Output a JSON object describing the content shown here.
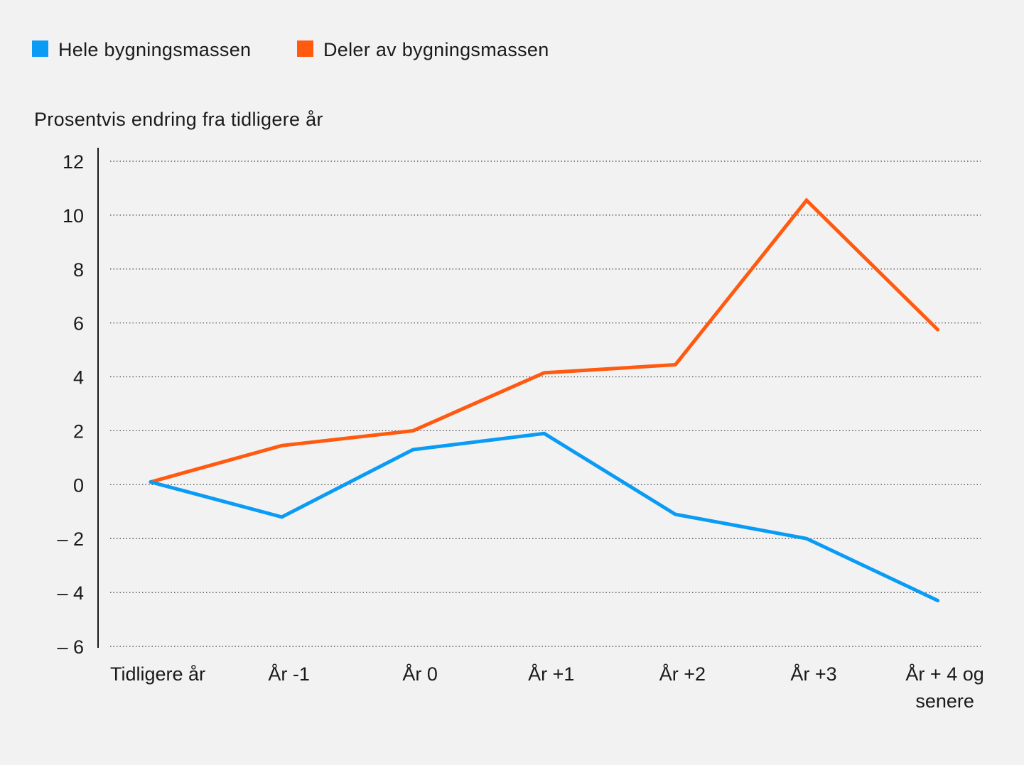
{
  "chart_data": {
    "type": "line",
    "title": "",
    "ylabel": "Prosentvis endring fra tidligere år",
    "xlabel": "",
    "categories": [
      "Tidligere år",
      "År -1",
      "År 0",
      "År +1",
      "År +2",
      "År +3",
      "År + 4 og senere"
    ],
    "category_lines": [
      [
        "Tidligere år"
      ],
      [
        "År -1"
      ],
      [
        "År 0"
      ],
      [
        "År +1"
      ],
      [
        "År +2"
      ],
      [
        "År +3"
      ],
      [
        "År + 4 og",
        "senere"
      ]
    ],
    "ylim": [
      -6,
      12
    ],
    "yticks": [
      12,
      10,
      8,
      6,
      4,
      2,
      0,
      -2,
      -4,
      -6
    ],
    "ytick_labels": [
      "12",
      "10",
      "8",
      "6",
      "4",
      "2",
      "0",
      "– 2",
      "– 4",
      "– 6"
    ],
    "grid": "horizontal dotted",
    "legend_position": "top-left",
    "series": [
      {
        "name": "Hele bygningsmassen",
        "color": "#0a9bf5",
        "values": [
          0.1,
          -1.2,
          1.3,
          1.9,
          -1.1,
          -2.0,
          -4.3
        ]
      },
      {
        "name": "Deler av bygningsmassen",
        "color": "#ff5a0f",
        "values": [
          0.1,
          1.45,
          2.0,
          4.15,
          4.45,
          10.55,
          5.75
        ]
      }
    ]
  }
}
